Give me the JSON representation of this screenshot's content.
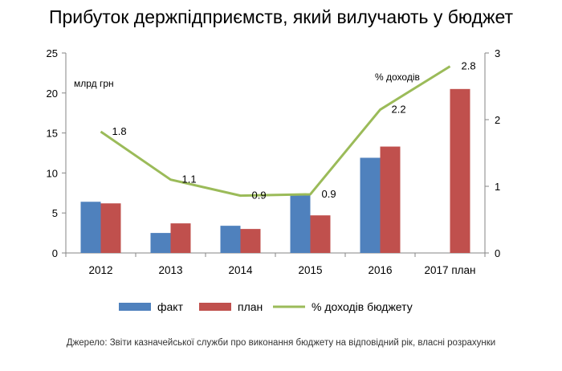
{
  "chart_data": {
    "type": "bar",
    "title": "Прибуток держпідприємств, який вилучають у бюджет",
    "categories": [
      "2012",
      "2013",
      "2014",
      "2015",
      "2016",
      "2017 план"
    ],
    "series": [
      {
        "name": "факт",
        "type": "bar",
        "color": "#4F81BD",
        "values": [
          6.4,
          2.5,
          3.4,
          7.4,
          11.9,
          null
        ]
      },
      {
        "name": "план",
        "type": "bar",
        "color": "#C0504D",
        "values": [
          6.2,
          3.7,
          3.0,
          4.7,
          13.3,
          20.5
        ]
      },
      {
        "name": "% доходів бюджету",
        "type": "line",
        "axis": "right",
        "color": "#9BBB59",
        "values": [
          1.82,
          1.1,
          0.86,
          0.88,
          2.15,
          2.8
        ]
      }
    ],
    "data_labels": [
      "1.8",
      "1.1",
      "0.9",
      "0.9",
      "2.2",
      "2.8"
    ],
    "y_left": {
      "label": "млрд грн",
      "range": [
        0,
        25
      ],
      "ticks": [
        "0",
        "5",
        "10",
        "15",
        "20",
        "25"
      ]
    },
    "y_right": {
      "label": "% доходів",
      "range": [
        0,
        3
      ],
      "ticks": [
        "0",
        "1",
        "2",
        "3"
      ]
    },
    "legend_position": "bottom",
    "grid": false
  },
  "source_note": "Джерело: Звіти казначейської служби про виконання бюджету на відповідний рік, власні розрахунки"
}
